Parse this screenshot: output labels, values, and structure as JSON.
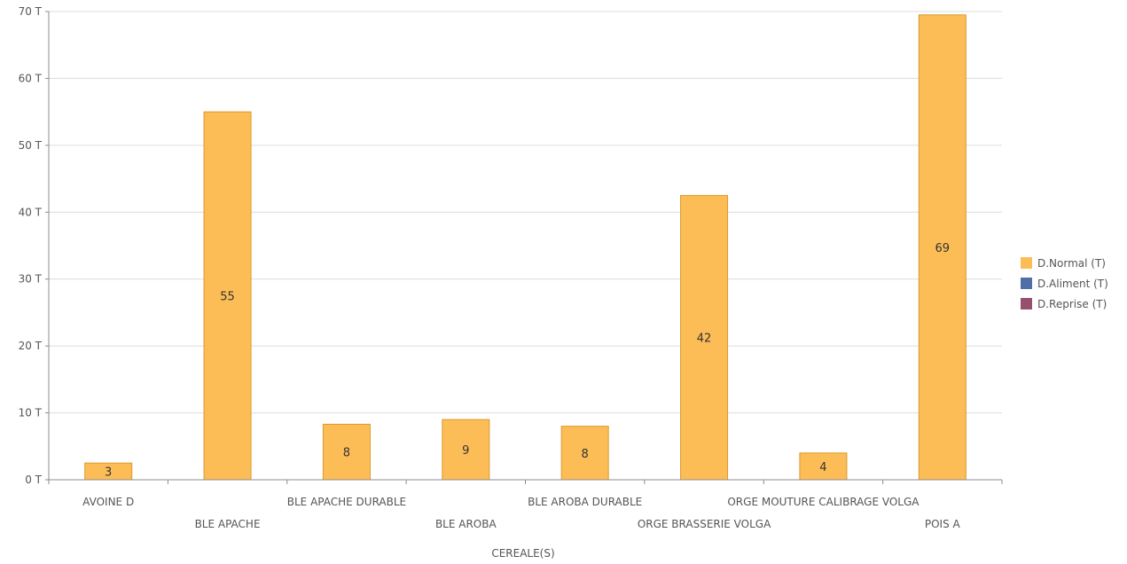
{
  "chart_data": {
    "type": "bar",
    "categories": [
      "AVOINE D",
      "BLE APACHE",
      "BLE APACHE DURABLE",
      "BLE AROBA",
      "BLE AROBA DURABLE",
      "ORGE BRASSERIE VOLGA",
      "ORGE MOUTURE CALIBRAGE VOLGA",
      "POIS A"
    ],
    "series": [
      {
        "name": "D.Normal (T)",
        "color": "#FCBD57",
        "values": [
          2.5,
          55,
          8.3,
          9,
          8,
          42.5,
          4,
          69.5
        ],
        "labels": [
          "3",
          "55",
          "8",
          "9",
          "8",
          "42",
          "4",
          "69"
        ]
      },
      {
        "name": "D.Aliment (T)",
        "color": "#4F6FA6",
        "values": [
          0,
          0,
          0,
          0,
          0,
          0,
          0,
          0
        ]
      },
      {
        "name": "D.Reprise (T)",
        "color": "#96506E",
        "values": [
          0,
          0,
          0,
          0,
          0,
          0,
          0,
          0
        ]
      }
    ],
    "ylim": [
      0,
      70
    ],
    "yticks": [
      "0 T",
      "10 T",
      "20 T",
      "30 T",
      "40 T",
      "50 T",
      "60 T",
      "70 T"
    ],
    "xlabel": "CEREALE(S)",
    "ylabel": "",
    "grid": true,
    "legend_position": "right"
  }
}
